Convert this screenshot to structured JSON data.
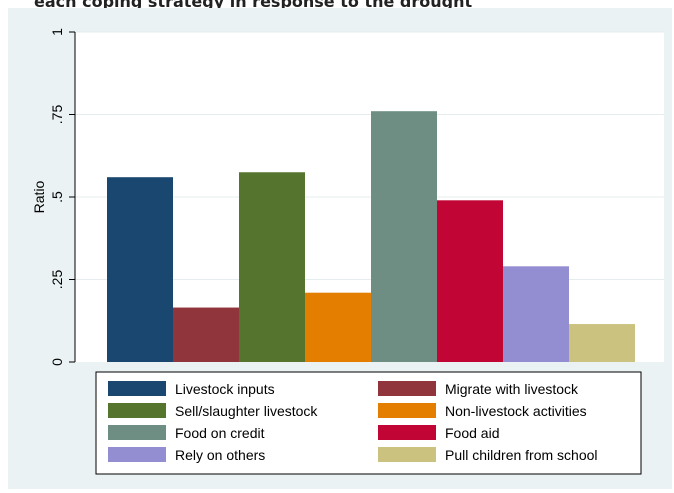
{
  "caption": "each coping strategy in response to the drought",
  "chart_data": {
    "type": "bar",
    "ylabel": "Ratio",
    "ylim": [
      0,
      1
    ],
    "yticks": [
      "0",
      ".25",
      ".5",
      ".75",
      "1"
    ],
    "legend_position": "bottom",
    "grid": true,
    "series": [
      {
        "name": "Livestock inputs",
        "value": 0.56,
        "color": "#1a476f"
      },
      {
        "name": "Migrate with livestock",
        "value": 0.165,
        "color": "#90353b"
      },
      {
        "name": "Sell/slaughter livestock",
        "value": 0.575,
        "color": "#55752f"
      },
      {
        "name": "Non-livestock activities",
        "value": 0.21,
        "color": "#e37e00"
      },
      {
        "name": "Food on credit",
        "value": 0.76,
        "color": "#6e8e84"
      },
      {
        "name": "Food aid",
        "value": 0.49,
        "color": "#c10534"
      },
      {
        "name": "Rely on others",
        "value": 0.29,
        "color": "#938dd2"
      },
      {
        "name": "Pull children from school",
        "value": 0.115,
        "color": "#cac27e"
      }
    ]
  }
}
